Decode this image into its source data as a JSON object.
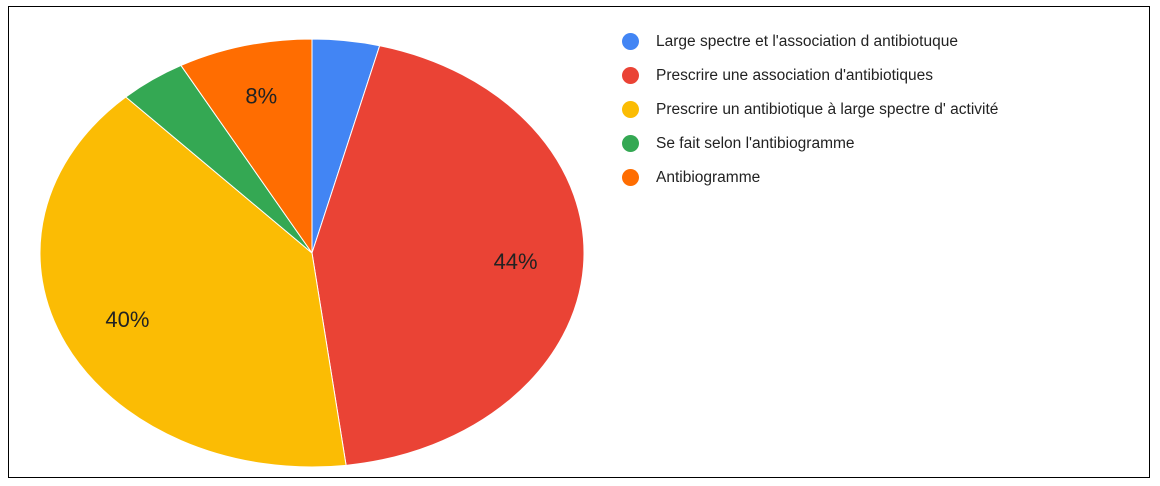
{
  "chart_data": {
    "type": "pie",
    "categories": [
      "Large spectre et l'association d antibiotuque",
      "Prescrire une association d'antibiotiques",
      "Prescrire un antibiotique à large spectre d' activité",
      "Se fait selon l'antibiogramme",
      "Antibiogramme"
    ],
    "values": [
      4,
      44,
      40,
      4,
      8
    ],
    "value_labels": [
      null,
      "44%",
      "40%",
      null,
      "8%"
    ],
    "colors": [
      "#4285f4",
      "#ea4335",
      "#fbbc04",
      "#34a853",
      "#ff6d01"
    ],
    "legend": "right"
  }
}
